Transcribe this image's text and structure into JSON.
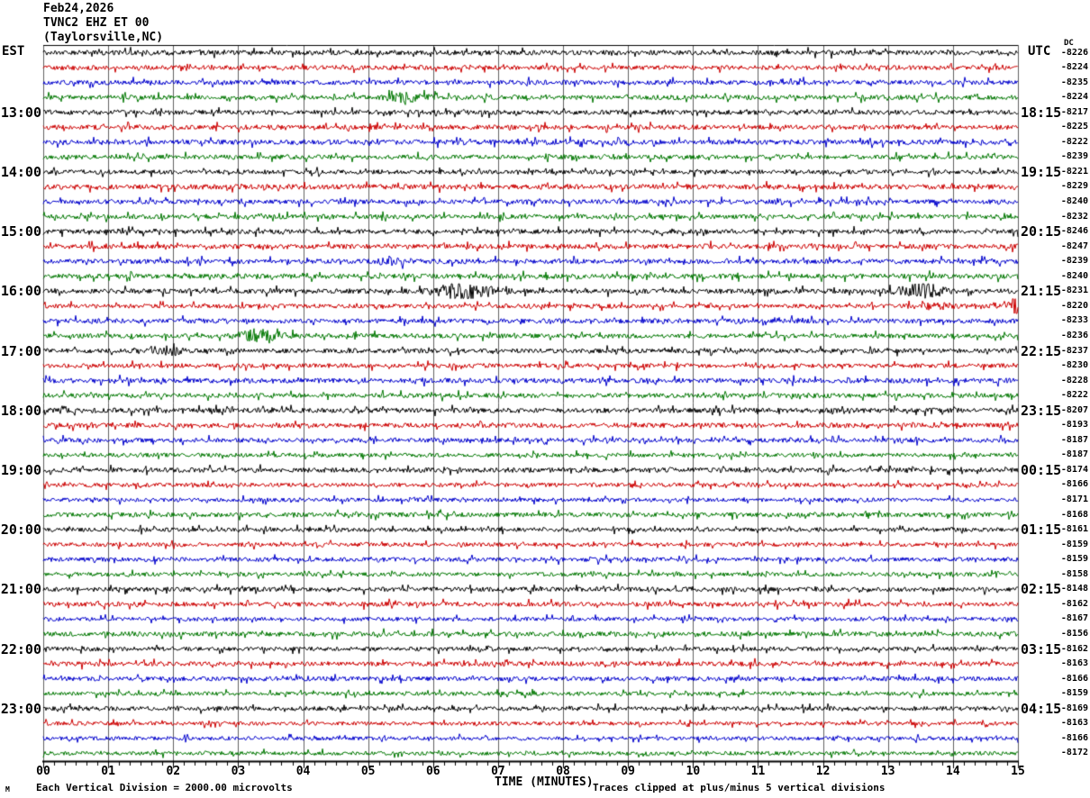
{
  "title": {
    "date": "Feb24,2026",
    "station": "TVNC2 EHZ ET 00",
    "location": "(Taylorsville,NC)"
  },
  "axes": {
    "left_header": "EST",
    "right_header": "UTC",
    "dc_header": "DC",
    "x_label": "TIME (MINUTES)",
    "x_ticks": [
      "00",
      "01",
      "02",
      "03",
      "04",
      "05",
      "06",
      "07",
      "08",
      "09",
      "10",
      "11",
      "12",
      "13",
      "14",
      "15"
    ],
    "footer_left": "Each Vertical Division = 2000.00 microvolts",
    "footer_right": "Traces clipped at plus/minus 5 vertical divisions",
    "watermark": "M"
  },
  "chart_data": {
    "type": "line",
    "subtype": "helicorder-seismogram",
    "title": "TVNC2 EHZ ET 00 (Taylorsville,NC) Feb24,2026",
    "xlabel": "TIME (MINUTES)",
    "x_range_minutes": [
      0,
      15
    ],
    "minutes_per_row": 15,
    "n_rows": 48,
    "trace_colors": [
      "#000000",
      "#cc0000",
      "#0000cc",
      "#007700"
    ],
    "grid_color": "#606060",
    "clip_note": "Traces clipped at plus/minus 5 vertical divisions",
    "vertical_division": "2000.00 microvolts",
    "hour_labels": [
      {
        "row": 4,
        "est": "13:00",
        "utc": "18:15"
      },
      {
        "row": 8,
        "est": "14:00",
        "utc": "19:15"
      },
      {
        "row": 12,
        "est": "15:00",
        "utc": "20:15"
      },
      {
        "row": 16,
        "est": "16:00",
        "utc": "21:15"
      },
      {
        "row": 20,
        "est": "17:00",
        "utc": "22:15"
      },
      {
        "row": 24,
        "est": "18:00",
        "utc": "23:15"
      },
      {
        "row": 28,
        "est": "19:00",
        "utc": "00:15"
      },
      {
        "row": 32,
        "est": "20:00",
        "utc": "01:15"
      },
      {
        "row": 36,
        "est": "21:00",
        "utc": "02:15"
      },
      {
        "row": 40,
        "est": "22:00",
        "utc": "03:15"
      },
      {
        "row": 44,
        "est": "23:00",
        "utc": "04:15"
      }
    ],
    "dc_values": [
      -8226,
      -8224,
      -8235,
      -8224,
      -8217,
      -8225,
      -8222,
      -8239,
      -8221,
      -8229,
      -8240,
      -8232,
      -8246,
      -8247,
      -8239,
      -8240,
      -8231,
      -8220,
      -8233,
      -8236,
      -8237,
      -8230,
      -8228,
      -8222,
      -8207,
      -8193,
      -8187,
      -8187,
      -8174,
      -8166,
      -8171,
      -8168,
      -8161,
      -8159,
      -8159,
      -8158,
      -8148,
      -8162,
      -8167,
      -8156,
      -8162,
      -8163,
      -8166,
      -8159,
      -8169,
      -8163,
      -8166,
      -8172
    ],
    "events": [
      {
        "row": 3,
        "minute": 5.6,
        "amp": 1.6,
        "width": 0.22
      },
      {
        "row": 14,
        "minute": 5.4,
        "amp": 1.2,
        "width": 0.18
      },
      {
        "row": 16,
        "minute": 6.5,
        "amp": 3.5,
        "width": 0.28
      },
      {
        "row": 16,
        "minute": 13.5,
        "amp": 3.0,
        "width": 0.22
      },
      {
        "row": 17,
        "minute": 13.7,
        "amp": 1.0,
        "width": 0.25
      },
      {
        "row": 17,
        "minute": 14.97,
        "amp": 7.0,
        "width": 0.06
      },
      {
        "row": 19,
        "minute": 3.33,
        "amp": 2.2,
        "width": 0.25
      },
      {
        "row": 20,
        "minute": 1.95,
        "amp": 1.8,
        "width": 0.12
      }
    ]
  }
}
